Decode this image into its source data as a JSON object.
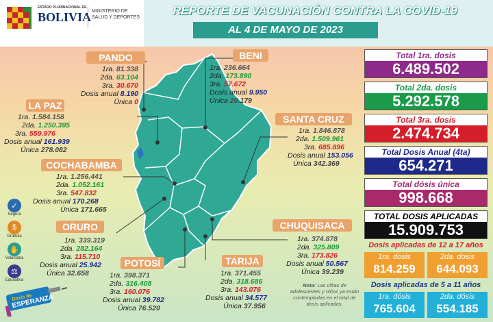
{
  "header": {
    "logo_line1": "ESTADO PLURINACIONAL DE",
    "logo_line2": "BOLIVIA",
    "ministry_line1": "MINISTERIO DE",
    "ministry_line2": "SALUD Y DEPORTES",
    "title": "REPORTE DE VACUNACIÓN CONTRA LA COVID-19",
    "date": "AL  4 DE MAYO  DE 2023"
  },
  "colors": {
    "teal": "#2a9d8f",
    "map_fill": "#2fa896",
    "tag": "#e8a46a",
    "purple": "#8e2a8a",
    "green": "#1a9a4a",
    "red": "#d41f2a",
    "navy": "#1e2a8a",
    "magenta": "#a82a6b",
    "orange": "#f0a030",
    "cyan": "#22b0d8"
  },
  "departments": [
    {
      "name": "PANDO",
      "rows": [
        [
          "1ra.",
          "81.338"
        ],
        [
          "2da.",
          "63.104"
        ],
        [
          "3ra.",
          "30.670"
        ],
        [
          "Dosis anual",
          "8.190"
        ],
        [
          "Única",
          "0"
        ]
      ]
    },
    {
      "name": "BENI",
      "rows": [
        [
          "1ra.",
          "236.664"
        ],
        [
          "2da.",
          "173.890"
        ],
        [
          "3ra.",
          "57.672"
        ],
        [
          "Dosis anual",
          "9.950"
        ],
        [
          "Única",
          "20.179"
        ]
      ]
    },
    {
      "name": "LA PAZ",
      "rows": [
        [
          "1ra.",
          "1.584.158"
        ],
        [
          "2da.",
          "1.250.395"
        ],
        [
          "3ra.",
          "559.976"
        ],
        [
          "Dosis anual",
          "161.939"
        ],
        [
          "Única",
          "278.082"
        ]
      ]
    },
    {
      "name": "SANTA CRUZ",
      "rows": [
        [
          "1ra.",
          "1.846.878"
        ],
        [
          "2da.",
          "1.509.961"
        ],
        [
          "3ra.",
          "685.896"
        ],
        [
          "Dosis anual",
          "153.056"
        ],
        [
          "Única",
          "342.369"
        ]
      ]
    },
    {
      "name": "COCHABAMBA",
      "rows": [
        [
          "1ra.",
          "1.256.441"
        ],
        [
          "2da.",
          "1.052.161"
        ],
        [
          "3ra.",
          "547.832"
        ],
        [
          "Dosis anual",
          "170.268"
        ],
        [
          "Única",
          "171.665"
        ]
      ]
    },
    {
      "name": "ORURO",
      "rows": [
        [
          "1ra.",
          "339.319"
        ],
        [
          "2da.",
          "282.164"
        ],
        [
          "3ra.",
          "115.710"
        ],
        [
          "Dosis anual",
          "25.942"
        ],
        [
          "Única",
          "32.658"
        ]
      ]
    },
    {
      "name": "CHUQUISACA",
      "rows": [
        [
          "1ra.",
          "374.878"
        ],
        [
          "2da.",
          "325.809"
        ],
        [
          "3ra.",
          "173.826"
        ],
        [
          "Dosis anual",
          "50.567"
        ],
        [
          "Única",
          "39.239"
        ]
      ]
    },
    {
      "name": "POTOSÍ",
      "rows": [
        [
          "1ra.",
          "398.371"
        ],
        [
          "2da.",
          "316.408"
        ],
        [
          "3ra.",
          "160.076"
        ],
        [
          "Dosis anual",
          "39.782"
        ],
        [
          "Única",
          "76.520"
        ]
      ]
    },
    {
      "name": "TARIJA",
      "rows": [
        [
          "1ra.",
          "371.455"
        ],
        [
          "2da.",
          "318.686"
        ],
        [
          "3ra.",
          "143.076"
        ],
        [
          "Dosis anual",
          "34.577"
        ],
        [
          "Única",
          "37.956"
        ]
      ]
    }
  ],
  "totals": [
    {
      "label": "Total 1ra. dosis",
      "value": "6.489.502"
    },
    {
      "label": "Total 2da. dosis",
      "value": "5.292.578"
    },
    {
      "label": "Total 3ra. dosis",
      "value": "2.474.734"
    },
    {
      "label": "Total Dosis Anual (4ta)",
      "value": "654.271"
    },
    {
      "label": "Total dósis única",
      "value": "998.668"
    },
    {
      "label": "TOTAL DOSIS APLICADAS",
      "value": "15.909.753"
    }
  ],
  "teens": {
    "title": "Dosis aplicadas de 12 a 17 años",
    "d1_label": "1ra. dosis",
    "d1": "814.259",
    "d2_label": "2da. dosis",
    "d2": "644.093"
  },
  "kids": {
    "title": "Dosis aplicadas de 5 a 11 años",
    "d1_label": "1ra. dósis",
    "d1": "765.604",
    "d2_label": "2da. dósis",
    "d2": "554.185"
  },
  "note": {
    "bold": "Nota:",
    "text": "Las cifras de adolescentes y niños ya están contempladas en el total de dosis aplicadas."
  },
  "side_icons": [
    "Segura",
    "Gratuita",
    "Voluntaria",
    "Equitativa"
  ],
  "campaign": {
    "line1": "Dosis de",
    "line2": "ESPERANZA"
  }
}
